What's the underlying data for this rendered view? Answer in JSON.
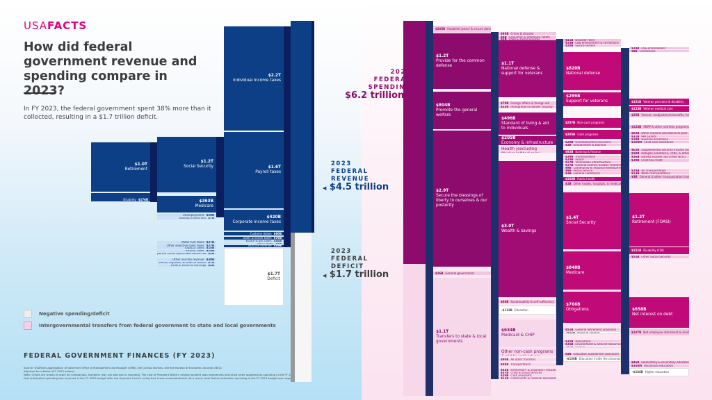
{
  "header": {
    "logo": "USAFACTS",
    "logo_a": "USA",
    "logo_b": "FACTS",
    "title": "How did federal government revenue and spending compare in 2023?",
    "subtitle": "In FY 2023, the federal government spent 38% more than it collected, resulting in a $1.7 trillion deficit."
  },
  "legend": [
    {
      "label": "Negative spending/deficit",
      "color": "#eeeeee"
    },
    {
      "label": "Intergovernmental transfers from federal government to state and local governments",
      "color": "#f7d0e6"
    }
  ],
  "footer": {
    "heading": "FEDERAL GOVERNMENT FINANCES (FY 2023)",
    "source": "Source: USAFacts aggregation of data from Office of Management and Budget (OMB), the Census Bureau, and the Bureau of Economic Analysis (BEA)",
    "adjusted": "Adjusted for inflation (FY 2023 dollars)",
    "note": "Note: Charts are shown to scale for comparison. Numbers may not add due to rounding. The cost of President Biden's original student loan forgiveness executive order appeared as spending in the FY 2022 budget, but that anticipated spending was reversed in the FY 2023 budget after the Supreme Court's ruling that it was unconstitutional. As a result, total federal education spending in the FY 2023 budget was negative."
  },
  "totals": {
    "spending": {
      "year": "2023",
      "l1": "FEDERAL",
      "l2": "SPENDING",
      "amount": "$6.2 trillion",
      "color": "#8c0b6c"
    },
    "revenue": {
      "year": "2023",
      "l1": "FEDERAL",
      "l2": "REVENUE",
      "amount": "$4.5 trillion",
      "color": "#0d3f86"
    },
    "deficit": {
      "year": "2023",
      "l1": "FEDERAL",
      "l2": "DEFICIT",
      "amount": "$1.7 trillion",
      "color": "#3d3d3d"
    }
  },
  "revenue": [
    {
      "v": "$2.2T",
      "l": "Individual income taxes"
    },
    {
      "v": "$1.6T",
      "l": "Payroll taxes"
    },
    {
      "v": "$420B",
      "l": "Corporate income taxes"
    },
    {
      "v": "$80B",
      "l": "Customs duties"
    },
    {
      "v": "$76B",
      "l": "Sales & excise taxes"
    },
    {
      "v": "$34B",
      "l": "Estate & gift taxes"
    },
    {
      "v": "$9B",
      "l": "Other taxes"
    },
    {
      "v": "$39B",
      "l": "Non-tax revenue"
    },
    {
      "v": "$1.2T",
      "l": "Social Security"
    },
    {
      "v": "$363B",
      "l": "Medicare"
    },
    {
      "v": "$50B",
      "l": "Unemployment"
    },
    {
      "v": "$7B",
      "l": "Railroad retirement"
    },
    {
      "v": "$1.0T",
      "l": "Retirement"
    },
    {
      "v": "$176B",
      "l": "Disability"
    },
    {
      "v": "$27B",
      "l": "Motor fuel taxes"
    },
    {
      "v": "$27B",
      "l": "Other selective sales taxes"
    },
    {
      "v": "$10B",
      "l": "Tobacco taxes"
    },
    {
      "v": "$10B",
      "l": "Alcohol taxes"
    },
    {
      "v": "$2B",
      "l": "Corporate stock repurchase excise tax"
    },
    {
      "v": "$30B",
      "l": "Other non-tax revenue"
    },
    {
      "v": "$7B",
      "l": "Rents, royalties, & sales of assets"
    },
    {
      "v": "$2B",
      "l": "Federal Reserve earnings"
    },
    {
      "v": "$1.7T",
      "l": "Deficit"
    }
  ],
  "spending": [
    {
      "v": "$203B",
      "l": "Establish justice & ensure domestic tranquility"
    },
    {
      "v": "$1.2T",
      "l": "Provide for the common defense"
    },
    {
      "v": "$804B",
      "l": "Promote the general welfare"
    },
    {
      "v": "$2.9T",
      "l": "Secure the blessings of liberty to ourselves & our posterity"
    },
    {
      "v": "$26B",
      "l": "General government"
    },
    {
      "v": "$1.1T",
      "l": "Transfers to state & local governments"
    },
    {
      "v": "$93B",
      "l": "Crime & disaster"
    },
    {
      "v": "$8B",
      "l": "Consumer & employee safety"
    },
    {
      "v": "$2B",
      "l": "Child & social services"
    },
    {
      "v": "$1.1T",
      "l": "National defense & support for veterans"
    },
    {
      "v": "$70B",
      "l": "Foreign affairs & foreign aid"
    },
    {
      "v": "$23B",
      "l": "Immigration & border security"
    },
    {
      "v": "$496B",
      "l": "Standard of living & aid to individuals"
    },
    {
      "v": "$205B",
      "l": "Economy & infrastructure"
    },
    {
      "v": "$103B",
      "l": "Health (excluding Medicaid/Medicare)"
    },
    {
      "v": "$3.0T",
      "l": "Wealth & savings"
    },
    {
      "v": "$66B",
      "l": "Sustainability & self-sufficiency"
    },
    {
      "v": "-$132B",
      "l": "Education"
    },
    {
      "v": "$634B",
      "l": "Medicaid & CHIP"
    },
    {
      "v": "$144B",
      "l": "Other non-cash programs & aid to individuals"
    },
    {
      "v": "$90B",
      "l": "All other transfers"
    },
    {
      "v": "$88B",
      "l": "Transportation"
    },
    {
      "v": "$63B",
      "l": "Elementary & secondary education"
    },
    {
      "v": "$37B",
      "l": "Child & social services"
    },
    {
      "v": "$20B",
      "l": "Cash programs"
    },
    {
      "v": "$11B",
      "l": "Community & regional development"
    },
    {
      "v": "$41B",
      "l": "Disaster relief"
    },
    {
      "v": "$33B",
      "l": "Law enforcement & corrections"
    },
    {
      "v": "$20B",
      "l": "Justice system"
    },
    {
      "v": "$820B",
      "l": "National defense"
    },
    {
      "v": "$299B",
      "l": "Support for veterans"
    },
    {
      "v": "$257B",
      "l": "Non-cash programs"
    },
    {
      "v": "$205B",
      "l": "Cash programs"
    },
    {
      "v": "$20B",
      "l": "Unemployment insurance"
    },
    {
      "v": "$3B",
      "l": "Employment & training"
    },
    {
      "v": "$92B",
      "l": "Banking & finance"
    },
    {
      "v": "$39B",
      "l": "Transportation"
    },
    {
      "v": "$24B",
      "l": "Space"
    },
    {
      "v": "$17B",
      "l": "Technology infrastructure"
    },
    {
      "v": "$17B",
      "l": "General science & basic research"
    },
    {
      "v": "$9B",
      "l": "Community & regional development"
    },
    {
      "v": "$9B",
      "l": "Postal service"
    },
    {
      "v": "$3B",
      "l": "General commerce"
    },
    {
      "v": "$102B",
      "l": "Public health"
    },
    {
      "v": "$1B",
      "l": "Other health, hospitals, & medical assistance (including unallocable)"
    },
    {
      "v": "$1.4T",
      "l": "Social Security"
    },
    {
      "v": "$848B",
      "l": "Medicare"
    },
    {
      "v": "$766B",
      "l": "Obligations"
    },
    {
      "v": "$51B",
      "l": "General retirement programs"
    },
    {
      "v": "-$22B",
      "l": "Housing support"
    },
    {
      "v": "$35B",
      "l": "Agriculture"
    },
    {
      "v": "$35B",
      "l": "Environment & natural resources"
    },
    {
      "v": "-$1B",
      "l": "Energy"
    },
    {
      "v": "$4B",
      "l": "Education outside the classroom"
    },
    {
      "v": "-$136B",
      "l": "Education inside the classroom"
    },
    {
      "v": "$24B",
      "l": "Law enforcement"
    },
    {
      "v": "$8B",
      "l": "Corrections"
    },
    {
      "v": "$151B",
      "l": "Veteran pensions & disability"
    },
    {
      "v": "$123B",
      "l": "Veteran medical care"
    },
    {
      "v": "$25B",
      "l": "Veteran readjustment benefits, housing, & other services"
    },
    {
      "v": "$124B",
      "l": "SNAP & other nutrition programs"
    },
    {
      "v": "$83B",
      "l": "Other medical assistance to poor"
    },
    {
      "v": "$31B",
      "l": "Pell Grants"
    },
    {
      "v": "$19B",
      "l": "Housing assistance"
    },
    {
      "v": "$200M",
      "l": "Child care assistance"
    },
    {
      "v": "$62B",
      "l": "Supplemental Security Income (SSI)"
    },
    {
      "v": "$59B",
      "l": "Refugee assistance, TANF, & other"
    },
    {
      "v": "$56B",
      "l": "Earned Income Tax Credit (EITC)"
    },
    {
      "v": "$29B",
      "l": "Child tax credit"
    },
    {
      "v": "$24B",
      "l": "Air transportation"
    },
    {
      "v": "$13B",
      "l": "Water transportation"
    },
    {
      "v": "$3B",
      "l": "General & other transportation (incl. highway, railroad, & unallocable)"
    },
    {
      "v": "$1.2T",
      "l": "Retirement (FOASI)"
    },
    {
      "v": "$151B",
      "l": "Disability (FDI)"
    },
    {
      "v": "$51B",
      "l": "Other Social Security"
    },
    {
      "v": "$658B",
      "l": "Net interest on debt"
    },
    {
      "v": "$107B",
      "l": "Net employee retirement & disability benefits"
    },
    {
      "v": "$46B",
      "l": "Elementary & secondary education"
    },
    {
      "v": "$300M",
      "l": "Vocational education"
    },
    {
      "v": "-$184B",
      "l": "Higher education"
    }
  ]
}
